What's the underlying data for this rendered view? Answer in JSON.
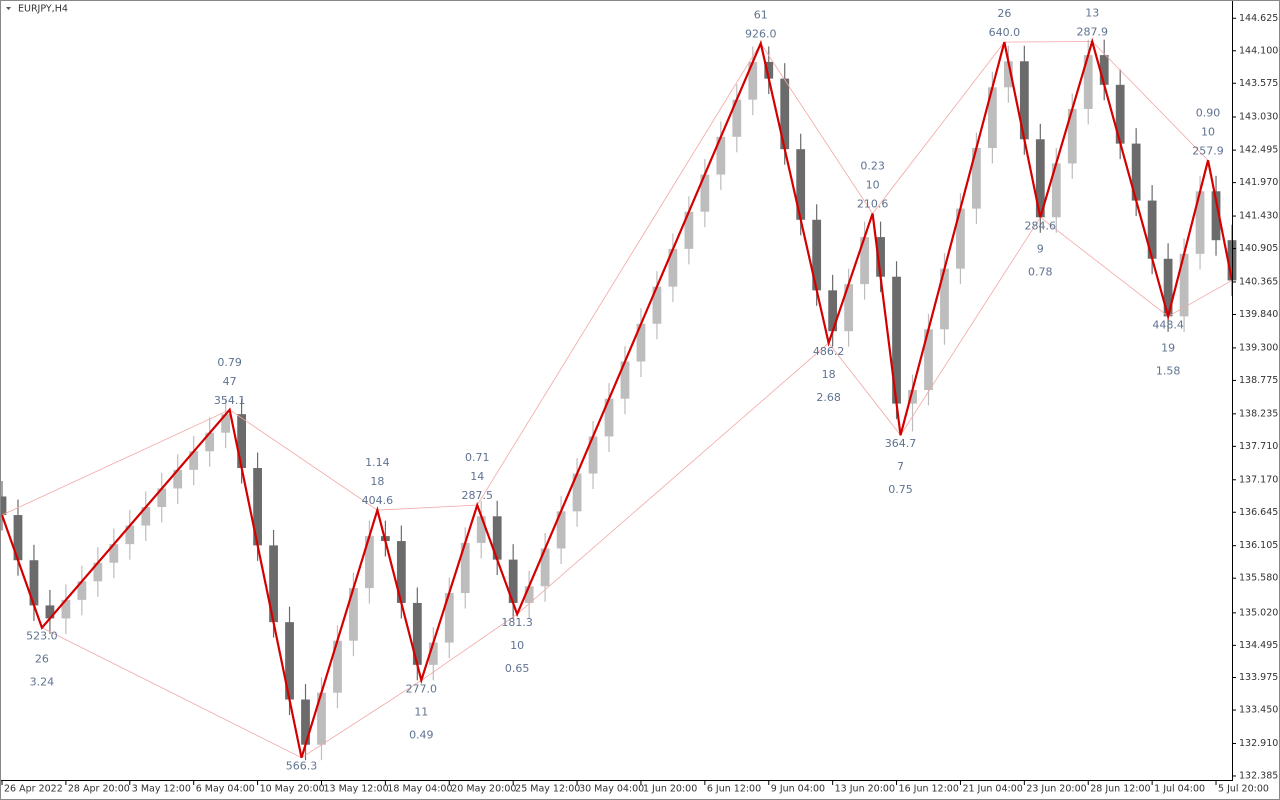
{
  "window": {
    "symbol_label": "EURJPY,H4"
  },
  "chart_data": {
    "type": "candlestick",
    "bull_color": "#bdbdbd",
    "bear_color": "#6b6b6b",
    "x": [
      0,
      4,
      8,
      12,
      16,
      20,
      24,
      28,
      32,
      36,
      40,
      44,
      48,
      52,
      56,
      60,
      64,
      68,
      72,
      76,
      80,
      84,
      88,
      92,
      96,
      100,
      104,
      108,
      112,
      116,
      120,
      124,
      128,
      132,
      136,
      140,
      144,
      148,
      152,
      156,
      160,
      164,
      168,
      172,
      176,
      180,
      184,
      188,
      192,
      196,
      200,
      204,
      208,
      212,
      216,
      220,
      224,
      228,
      232,
      236,
      240,
      244,
      248,
      252,
      256,
      260,
      264,
      268,
      272,
      276,
      280,
      284,
      288,
      292,
      296,
      300,
      304,
      308
    ],
    "open": [
      136.9,
      136.6,
      135.87,
      135.14,
      134.93,
      135.23,
      135.53,
      135.83,
      136.13,
      136.43,
      136.73,
      137.03,
      137.33,
      137.63,
      137.93,
      138.23,
      137.36,
      136.11,
      134.87,
      133.62,
      132.89,
      133.73,
      134.57,
      135.42,
      136.26,
      136.18,
      135.18,
      134.18,
      134.54,
      135.34,
      136.15,
      136.58,
      135.88,
      135.18,
      135.45,
      136.06,
      136.66,
      137.27,
      137.87,
      138.48,
      139.08,
      139.69,
      140.29,
      140.9,
      141.5,
      142.1,
      142.71,
      143.31,
      143.92,
      143.65,
      142.51,
      141.37,
      140.23,
      139.57,
      140.33,
      141.09,
      140.45,
      138.4,
      138.62,
      139.6,
      140.58,
      141.55,
      142.53,
      143.51,
      143.93,
      142.67,
      141.41,
      142.28,
      143.16,
      144.03,
      143.55,
      142.6,
      141.68,
      140.74,
      139.81,
      140.82,
      141.83,
      141.04
    ],
    "high": [
      137.15,
      136.85,
      136.12,
      135.39,
      135.48,
      135.78,
      136.08,
      136.38,
      136.68,
      136.98,
      137.28,
      137.58,
      137.88,
      138.18,
      138.48,
      138.48,
      137.61,
      136.36,
      135.12,
      133.87,
      133.98,
      134.82,
      135.67,
      136.51,
      136.51,
      136.43,
      135.43,
      134.79,
      135.59,
      136.4,
      136.83,
      136.83,
      136.13,
      135.7,
      136.31,
      136.91,
      137.52,
      138.12,
      138.73,
      139.33,
      139.94,
      140.54,
      141.15,
      141.75,
      142.35,
      142.96,
      143.56,
      144.17,
      144.17,
      143.9,
      142.76,
      141.62,
      140.48,
      140.58,
      141.34,
      141.34,
      140.7,
      138.87,
      139.85,
      140.83,
      141.8,
      142.78,
      143.76,
      144.18,
      144.18,
      142.92,
      142.53,
      143.41,
      144.28,
      144.28,
      143.8,
      142.85,
      141.93,
      140.99,
      141.07,
      142.08,
      142.08,
      141.29
    ],
    "low": [
      136.35,
      135.62,
      134.89,
      134.68,
      134.68,
      134.98,
      135.28,
      135.58,
      135.88,
      136.18,
      136.48,
      136.78,
      137.08,
      137.38,
      137.68,
      137.11,
      135.86,
      134.62,
      133.37,
      132.64,
      132.64,
      133.48,
      134.32,
      135.17,
      135.93,
      134.93,
      133.93,
      133.93,
      134.29,
      135.09,
      135.9,
      135.63,
      134.93,
      134.93,
      135.2,
      135.81,
      136.41,
      137.02,
      137.62,
      138.23,
      138.83,
      139.44,
      140.04,
      140.65,
      141.25,
      141.85,
      142.46,
      143.06,
      143.4,
      142.26,
      141.12,
      139.98,
      139.32,
      139.32,
      140.08,
      140.2,
      138.15,
      137.95,
      138.37,
      139.35,
      140.33,
      141.3,
      142.28,
      143.26,
      142.42,
      141.16,
      141.16,
      142.03,
      142.91,
      143.3,
      142.35,
      141.43,
      140.49,
      139.56,
      139.56,
      140.57,
      140.79,
      140.14
    ],
    "close": [
      136.6,
      135.87,
      135.14,
      134.93,
      135.23,
      135.53,
      135.83,
      136.13,
      136.43,
      136.73,
      137.03,
      137.33,
      137.63,
      137.93,
      138.23,
      137.36,
      136.11,
      134.87,
      133.62,
      132.89,
      133.73,
      134.57,
      135.42,
      136.26,
      136.18,
      135.18,
      134.18,
      134.54,
      135.34,
      136.15,
      136.58,
      135.88,
      135.18,
      135.45,
      136.06,
      136.66,
      137.27,
      137.87,
      138.48,
      139.08,
      139.69,
      140.29,
      140.9,
      141.5,
      142.1,
      142.71,
      143.31,
      143.92,
      143.65,
      142.51,
      141.37,
      140.23,
      139.57,
      140.33,
      141.09,
      140.45,
      138.4,
      138.62,
      139.6,
      140.58,
      141.55,
      142.53,
      143.51,
      143.93,
      142.67,
      141.41,
      142.28,
      143.16,
      144.03,
      143.55,
      142.6,
      141.68,
      140.74,
      139.81,
      140.82,
      141.83,
      141.04,
      140.39
    ],
    "zigzag": {
      "color": "#d40000",
      "channel_color": "#f2a6a6",
      "x": [
        0,
        10,
        57,
        75,
        94,
        105,
        119,
        129,
        190,
        207,
        218,
        225,
        251,
        260,
        273,
        292,
        302,
        308
      ],
      "values": [
        136.6,
        134.78,
        138.3,
        132.68,
        136.68,
        133.93,
        136.76,
        135.0,
        144.22,
        139.38,
        141.47,
        137.89,
        144.24,
        141.41,
        144.25,
        139.81,
        142.33,
        140.39
      ],
      "labels": [
        null,
        [
          "523.0",
          "26",
          "3.24"
        ],
        [
          "0.79",
          "47",
          "354.1"
        ],
        [
          "566.3"
        ],
        [
          "1.14",
          "18",
          "404.6"
        ],
        [
          "277.0",
          "11",
          "0.49"
        ],
        [
          "0.71",
          "14",
          "287.5"
        ],
        [
          "181.3",
          "10",
          "0.65"
        ],
        [
          "61",
          "926.0"
        ],
        [
          "486.2",
          "18",
          "2.68"
        ],
        [
          "0.23",
          "10",
          "210.6"
        ],
        [
          "364.7",
          "7",
          "0.75"
        ],
        [
          "26",
          "640.0"
        ],
        [
          "284.6",
          "9",
          "0.78"
        ],
        [
          "13",
          "287.9"
        ],
        [
          "448.4",
          "19",
          "1.58"
        ],
        [
          "0.90",
          "10",
          "257.9"
        ],
        null
      ]
    },
    "xlim": [
      0,
      308
    ],
    "ylim": [
      132.32,
      144.92
    ],
    "xticks": [
      {
        "value": 0,
        "label": "26 Apr 2022"
      },
      {
        "value": 16,
        "label": "28 Apr 20:00"
      },
      {
        "value": 32,
        "label": "3 May 12:00"
      },
      {
        "value": 48,
        "label": "6 May 04:00"
      },
      {
        "value": 64,
        "label": "10 May 20:00"
      },
      {
        "value": 80,
        "label": "13 May 12:00"
      },
      {
        "value": 96,
        "label": "18 May 04:00"
      },
      {
        "value": 112,
        "label": "20 May 20:00"
      },
      {
        "value": 128,
        "label": "25 May 12:00"
      },
      {
        "value": 144,
        "label": "30 May 04:00"
      },
      {
        "value": 160,
        "label": "1 Jun 20:00"
      },
      {
        "value": 176,
        "label": "6 Jun 12:00"
      },
      {
        "value": 192,
        "label": "9 Jun 04:00"
      },
      {
        "value": 208,
        "label": "13 Jun 20:00"
      },
      {
        "value": 224,
        "label": "16 Jun 12:00"
      },
      {
        "value": 240,
        "label": "21 Jun 04:00"
      },
      {
        "value": 256,
        "label": "23 Jun 20:00"
      },
      {
        "value": 272,
        "label": "28 Jun 12:00"
      },
      {
        "value": 288,
        "label": "1 Jul 04:00"
      },
      {
        "value": 304,
        "label": "5 Jul 20:00"
      }
    ],
    "yticks": [
      144.625,
      {
        "value": 144.1,
        "label": "144.100"
      },
      143.575,
      {
        "value": 143.03,
        "label": "143.030"
      },
      142.495,
      {
        "value": 141.97,
        "label": "141.970"
      },
      {
        "value": 141.43,
        "label": "141.430"
      },
      140.905,
      140.365,
      {
        "value": 139.84,
        "label": "139.840"
      },
      {
        "value": 139.3,
        "label": "139.300"
      },
      138.775,
      138.235,
      {
        "value": 137.71,
        "label": "137.710"
      },
      {
        "value": 137.17,
        "label": "137.170"
      },
      136.645,
      136.105,
      {
        "value": 135.58,
        "label": "135.580"
      },
      {
        "value": 135.02,
        "label": "135.020"
      },
      134.495,
      133.975,
      {
        "value": 133.45,
        "label": "133.450"
      },
      {
        "value": 132.91,
        "label": "132.910"
      },
      132.385
    ]
  }
}
